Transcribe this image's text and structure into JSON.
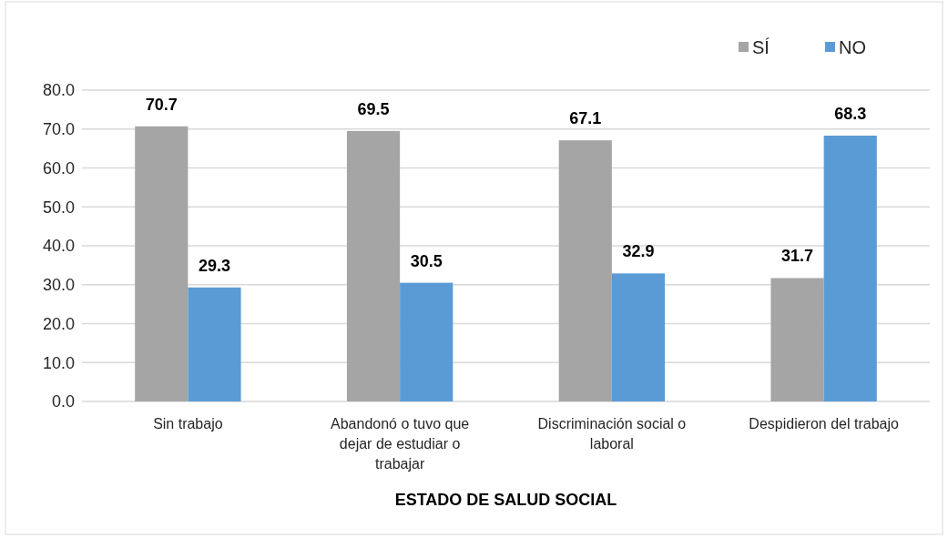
{
  "chart_data": {
    "type": "bar",
    "xlabel": "ESTADO DE SALUD SOCIAL",
    "categories": [
      "Sin trabajo",
      "Abandonó o tuvo que dejar de estudiar o trabajar",
      "Discriminación social o laboral",
      "Despidieron del trabajo"
    ],
    "series": [
      {
        "name": "SÍ",
        "color": "#a5a5a5",
        "values": [
          70.7,
          69.5,
          67.1,
          31.7
        ]
      },
      {
        "name": "NO",
        "color": "#5b9bd5",
        "values": [
          29.3,
          30.5,
          32.9,
          68.3
        ]
      }
    ],
    "ylim": [
      0,
      80
    ],
    "yticks": [
      {
        "value": 0,
        "label": "0.0"
      },
      {
        "value": 10,
        "label": "10.0"
      },
      {
        "value": 20,
        "label": "20.0"
      },
      {
        "value": 30,
        "label": "30.0"
      },
      {
        "value": 40,
        "label": "40.0"
      },
      {
        "value": 50,
        "label": "50.0"
      },
      {
        "value": 60,
        "label": "60.0"
      },
      {
        "value": 70,
        "label": "70.0"
      },
      {
        "value": 80,
        "label": "80.0"
      }
    ],
    "grid": "y",
    "legend": "top right",
    "data_labels": true
  }
}
